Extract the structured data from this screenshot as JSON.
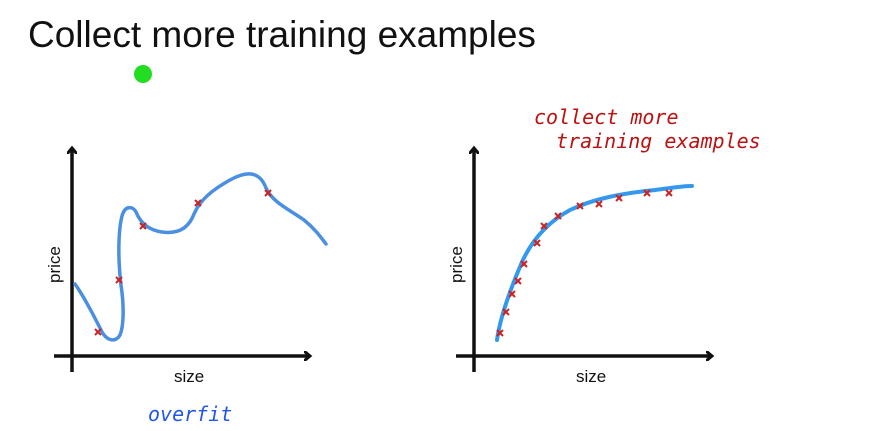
{
  "slide": {
    "title": "Collect more training examples",
    "pointer_color": "#22dd22"
  },
  "left_plot": {
    "xlabel": "size",
    "ylabel": "price",
    "annotation": "overfit",
    "annotation_color": "#2255ee",
    "curve_color": "#4a8fe0",
    "marker_color": "#cc2222"
  },
  "right_plot": {
    "xlabel": "size",
    "ylabel": "price",
    "annotation_line1": "collect more",
    "annotation_line2": "training examples",
    "annotation_color": "#bb1111",
    "curve_color": "#3399ee",
    "marker_color": "#cc2222"
  }
}
